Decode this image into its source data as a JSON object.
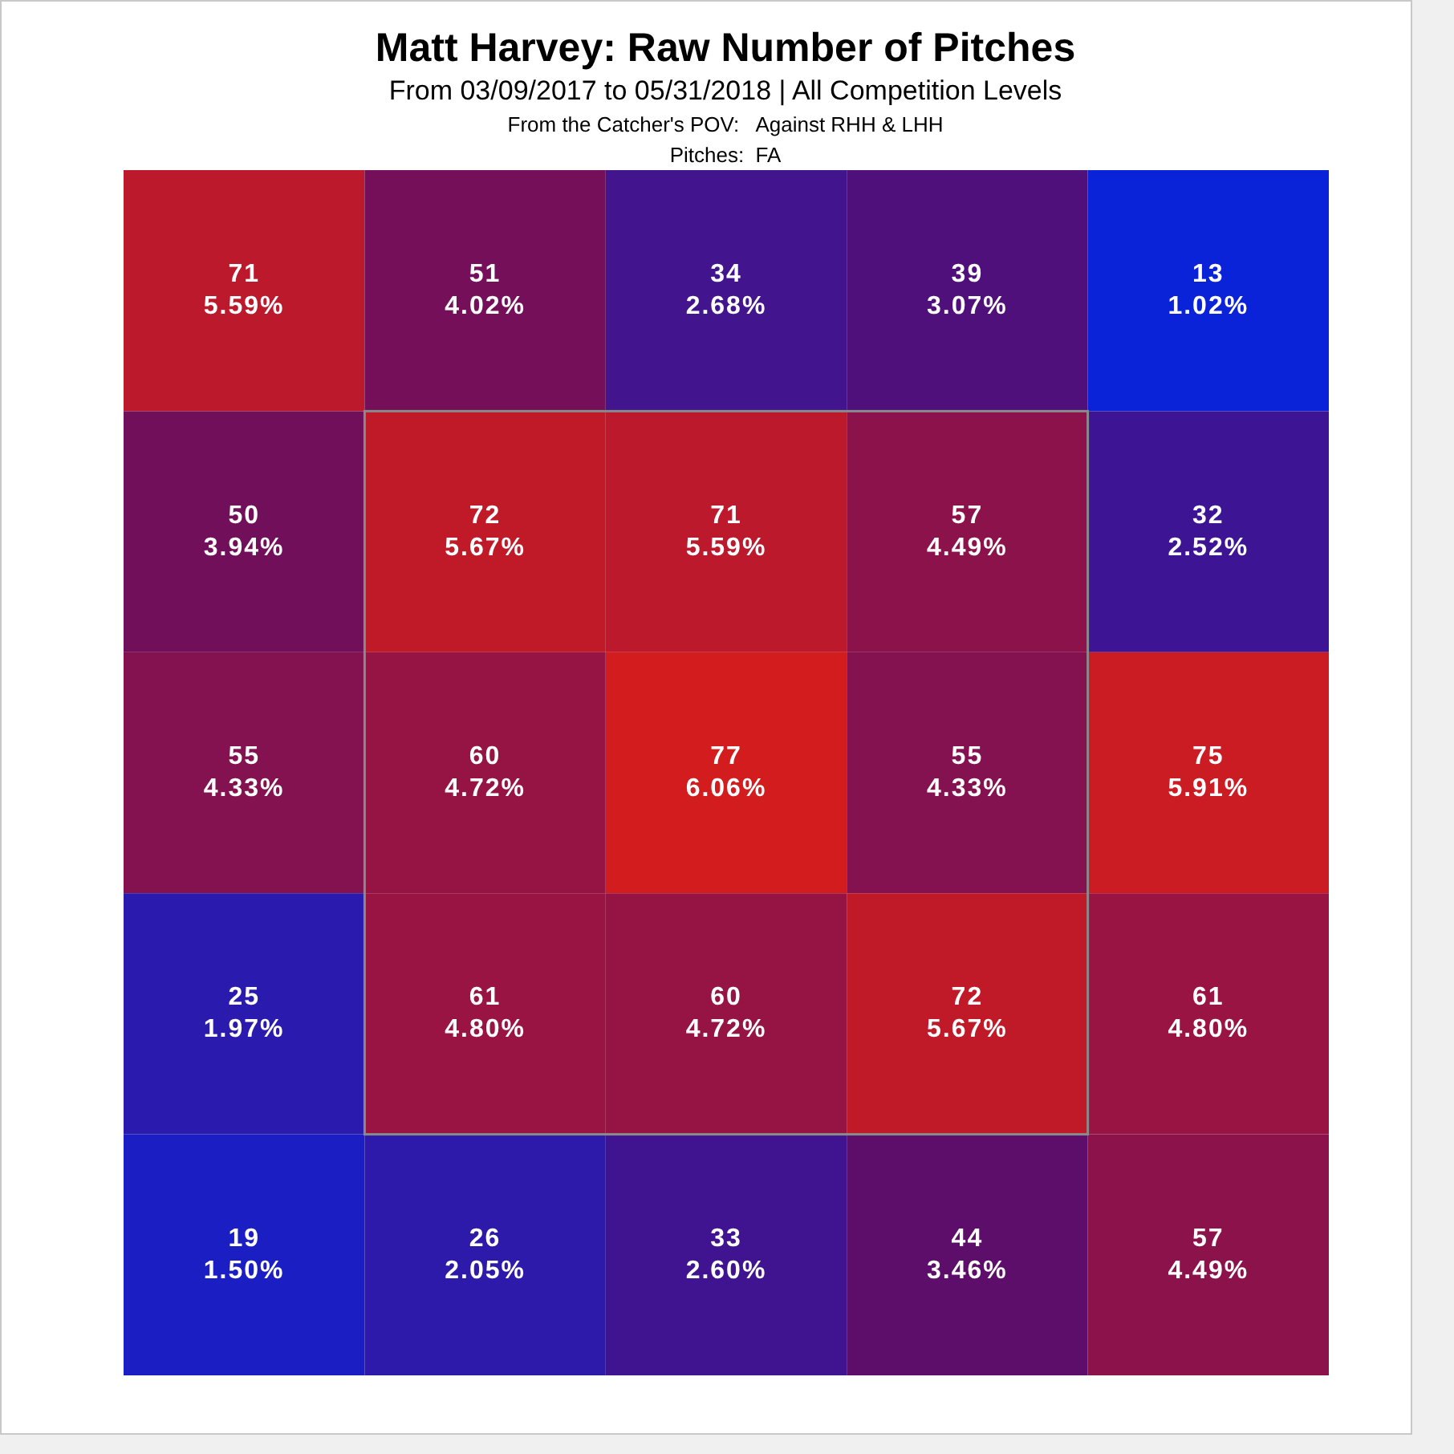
{
  "chart_data": {
    "type": "heatmap",
    "title": "Matt Harvey: Raw Number of Pitches",
    "subtitle": "From 03/09/2017 to 05/31/2018 | All Competition Levels\nFrom the Catcher's POV:   Against RHH & LHH\nPitches:  FA",
    "categories": [
      null,
      null,
      null,
      null,
      null
    ],
    "y_categories": [
      null,
      null,
      null,
      null,
      null
    ],
    "cells": [
      [
        71,
        51,
        34,
        39,
        13
      ],
      [
        50,
        72,
        71,
        57,
        32
      ],
      [
        55,
        60,
        77,
        55,
        75
      ],
      [
        25,
        61,
        60,
        72,
        61
      ],
      [
        19,
        26,
        33,
        44,
        57
      ]
    ],
    "data_labels": true,
    "annotations": [
      "5.59%",
      "4.02%",
      "2.68%",
      "3.07%",
      "1.02%",
      "3.94%",
      "5.67%",
      "5.59%",
      "4.49%",
      "2.52%",
      "4.33%",
      "4.72%",
      "6.06%",
      "4.33%",
      "5.91%",
      "1.97%",
      "4.80%",
      "4.72%",
      "5.67%",
      "4.80%",
      "1.50%",
      "2.05%",
      "2.60%",
      "3.46%",
      "4.49%"
    ],
    "colors": [
      "#0a22d8",
      "#600c66",
      "#d21c1e"
    ]
  }
}
